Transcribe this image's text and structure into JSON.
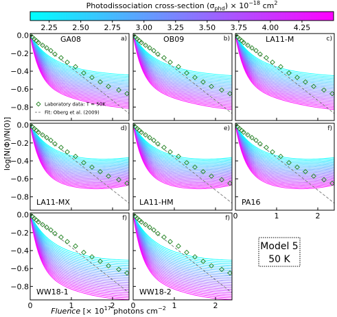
{
  "colors": {
    "cmap_low": "#00ffff",
    "cmap_high": "#ff00ff",
    "lab_marker": "#2e8b2e",
    "fit_line": "#808080"
  },
  "figure": {
    "colorbar": {
      "title": "Photodissociation cross-section (σ",
      "title_sub": "phd",
      "title_rest": ") × 10",
      "title_sup": "−18",
      "title_unit": " cm",
      "title_unit_sup": "2",
      "range": [
        2.1,
        4.5
      ],
      "ticks": [
        "2.25",
        "2.50",
        "2.75",
        "3.00",
        "3.25",
        "3.50",
        "3.75",
        "4.00",
        "4.25"
      ]
    },
    "ylabel": "log[N(Φ)/N(0)]",
    "xlabel_italic": "Fluence",
    "xlabel_rest": " [× 10",
    "xlabel_sup": "17",
    "xlabel_unit": " photons cm",
    "xlabel_unit_sup": "−2",
    "legend": {
      "lab": "Laboratory data: T = 50K",
      "fit": "Fit: Oberg et al. (2009)"
    },
    "model_box": {
      "line1": "Model 5",
      "line2": "50 K"
    }
  },
  "chart_data": {
    "type": "line",
    "xlim": [
      0,
      2.4
    ],
    "ylim": [
      -0.95,
      0.02
    ],
    "xticks": [
      "0",
      "1",
      "2"
    ],
    "yticks": [
      "0.0",
      "−0.2",
      "−0.4",
      "−0.6",
      "−0.8"
    ],
    "fit_slope": -0.363,
    "lab_data": {
      "x": [
        0.0,
        0.05,
        0.1,
        0.15,
        0.2,
        0.3,
        0.4,
        0.5,
        0.6,
        0.75,
        0.9,
        1.1,
        1.3,
        1.5,
        1.7,
        1.9,
        2.15,
        2.35
      ],
      "y": [
        0.0,
        -0.02,
        -0.04,
        -0.06,
        -0.08,
        -0.11,
        -0.14,
        -0.17,
        -0.21,
        -0.25,
        -0.3,
        -0.35,
        -0.42,
        -0.47,
        -0.52,
        -0.57,
        -0.61,
        -0.65
      ]
    },
    "model_curves": {
      "sigma_min": 2.2,
      "sigma_max": 4.4,
      "count": 24
    },
    "panels": [
      {
        "name": "GA08",
        "tag": "a)",
        "r_start": 0.33,
        "r_end": 0.2,
        "d_min": 0.3,
        "d_max": 0.55,
        "legend": true
      },
      {
        "name": "OB09",
        "tag": "b)",
        "r_start": 0.34,
        "r_end": 0.21,
        "d_min": 0.3,
        "d_max": 0.55
      },
      {
        "name": "LA11-M",
        "tag": "c)",
        "r_start": 0.34,
        "r_end": 0.21,
        "d_min": 0.3,
        "d_max": 0.55
      },
      {
        "name": "LA11-MX",
        "tag": "d)",
        "r_start": 0.37,
        "r_end": 0.09,
        "d_min": 0.3,
        "d_max": 0.55
      },
      {
        "name": "LA11-HM",
        "tag": "e)",
        "r_start": 0.37,
        "r_end": 0.09,
        "d_min": 0.3,
        "d_max": 0.55
      },
      {
        "name": "PA16",
        "tag": "f)",
        "r_start": 0.37,
        "r_end": 0.09,
        "d_min": 0.3,
        "d_max": 0.55
      },
      {
        "name": "WW18-1",
        "tag": "f)",
        "r_start": 0.36,
        "r_end": 0.19,
        "d_min": 0.35,
        "d_max": 0.65
      },
      {
        "name": "WW18-2",
        "tag": "f)",
        "r_start": 0.36,
        "r_end": 0.19,
        "d_min": 0.35,
        "d_max": 0.65
      }
    ]
  }
}
